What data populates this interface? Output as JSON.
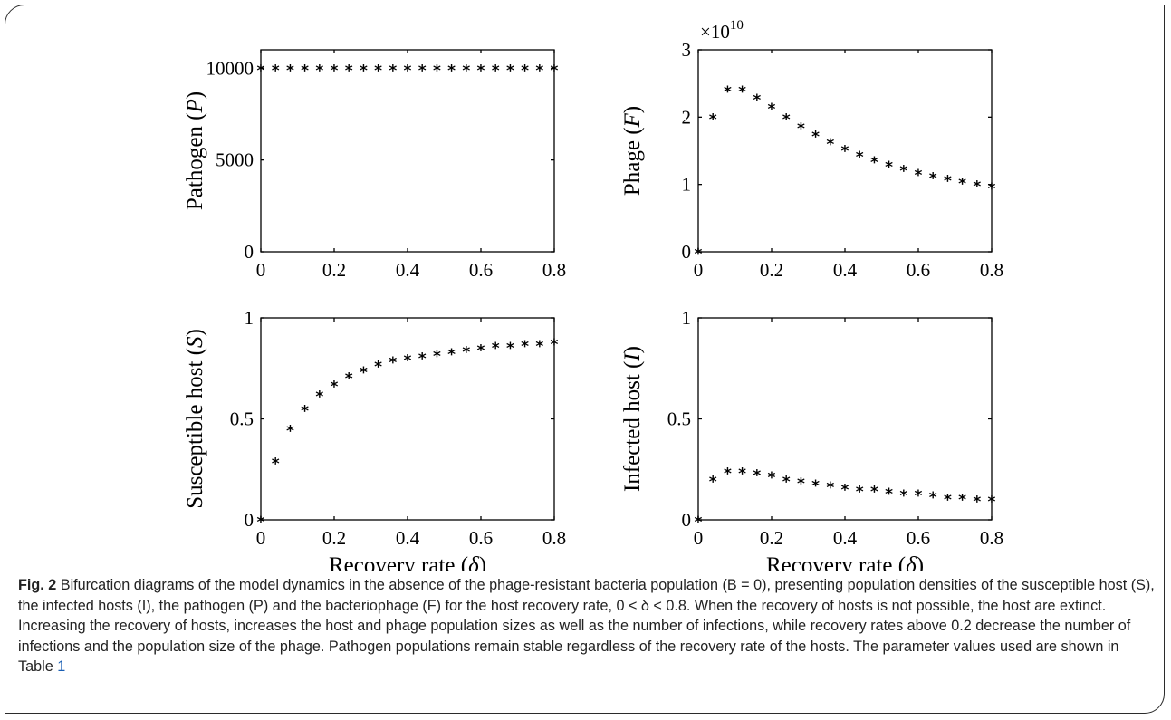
{
  "chart_data": [
    {
      "type": "scatter",
      "id": "pathogen",
      "ylabel": "Pathogen (P)",
      "xlabel": "",
      "xlim": [
        0,
        0.8
      ],
      "ylim": [
        0,
        11000
      ],
      "xticks": [
        0,
        0.2,
        0.4,
        0.6,
        0.8
      ],
      "xtick_labels": [
        "0",
        "0.2",
        "0.4",
        "0.6",
        "0.8"
      ],
      "yticks": [
        0,
        5000,
        10000
      ],
      "ytick_labels": [
        "0",
        "5000",
        "10000"
      ],
      "x": [
        0,
        0.04,
        0.08,
        0.12,
        0.16,
        0.2,
        0.24,
        0.28,
        0.32,
        0.36,
        0.4,
        0.44,
        0.48,
        0.52,
        0.56,
        0.6,
        0.64,
        0.68,
        0.72,
        0.76,
        0.8
      ],
      "y": [
        10000,
        10000,
        10000,
        10000,
        10000,
        10000,
        10000,
        10000,
        10000,
        10000,
        10000,
        10000,
        10000,
        10000,
        10000,
        10000,
        10000,
        10000,
        10000,
        10000,
        10000
      ]
    },
    {
      "type": "scatter",
      "id": "phage",
      "ylabel": "Phage (F)",
      "xlabel": "",
      "exponent": "10",
      "xlim": [
        0,
        0.8
      ],
      "ylim": [
        0,
        3
      ],
      "xticks": [
        0,
        0.2,
        0.4,
        0.6,
        0.8
      ],
      "xtick_labels": [
        "0",
        "0.2",
        "0.4",
        "0.6",
        "0.8"
      ],
      "yticks": [
        0,
        1,
        2,
        3
      ],
      "ytick_labels": [
        "0",
        "1",
        "2",
        "3"
      ],
      "x": [
        0,
        0.04,
        0.08,
        0.12,
        0.16,
        0.2,
        0.24,
        0.28,
        0.32,
        0.36,
        0.4,
        0.44,
        0.48,
        0.52,
        0.56,
        0.6,
        0.64,
        0.68,
        0.72,
        0.76,
        0.8
      ],
      "y": [
        0,
        2.0,
        2.41,
        2.41,
        2.29,
        2.15,
        2.0,
        1.86,
        1.74,
        1.63,
        1.53,
        1.44,
        1.36,
        1.29,
        1.23,
        1.17,
        1.12,
        1.08,
        1.04,
        1.0,
        0.97
      ]
    },
    {
      "type": "scatter",
      "id": "susceptible",
      "ylabel": "Susceptible host (S)",
      "xlabel": "Recovery rate (δ)",
      "xlim": [
        0,
        0.8
      ],
      "ylim": [
        0,
        1
      ],
      "xticks": [
        0,
        0.2,
        0.4,
        0.6,
        0.8
      ],
      "xtick_labels": [
        "0",
        "0.2",
        "0.4",
        "0.6",
        "0.8"
      ],
      "yticks": [
        0,
        0.5,
        1
      ],
      "ytick_labels": [
        "0",
        "0.5",
        "1"
      ],
      "x": [
        0,
        0.04,
        0.08,
        0.12,
        0.16,
        0.2,
        0.24,
        0.28,
        0.32,
        0.36,
        0.4,
        0.44,
        0.48,
        0.52,
        0.56,
        0.6,
        0.64,
        0.68,
        0.72,
        0.76,
        0.8
      ],
      "y": [
        0,
        0.29,
        0.45,
        0.55,
        0.62,
        0.67,
        0.71,
        0.74,
        0.77,
        0.79,
        0.8,
        0.81,
        0.82,
        0.83,
        0.84,
        0.85,
        0.86,
        0.86,
        0.87,
        0.87,
        0.88
      ]
    },
    {
      "type": "scatter",
      "id": "infected",
      "ylabel": "Infected host (I)",
      "xlabel": "Recovery rate (δ)",
      "xlim": [
        0,
        0.8
      ],
      "ylim": [
        0,
        1
      ],
      "xticks": [
        0,
        0.2,
        0.4,
        0.6,
        0.8
      ],
      "xtick_labels": [
        "0",
        "0.2",
        "0.4",
        "0.6",
        "0.8"
      ],
      "yticks": [
        0,
        0.5,
        1
      ],
      "ytick_labels": [
        "0",
        "0.5",
        "1"
      ],
      "x": [
        0,
        0.04,
        0.08,
        0.12,
        0.16,
        0.2,
        0.24,
        0.28,
        0.32,
        0.36,
        0.4,
        0.44,
        0.48,
        0.52,
        0.56,
        0.6,
        0.64,
        0.68,
        0.72,
        0.76,
        0.8
      ],
      "y": [
        0,
        0.2,
        0.24,
        0.24,
        0.23,
        0.22,
        0.2,
        0.19,
        0.18,
        0.17,
        0.16,
        0.15,
        0.15,
        0.14,
        0.13,
        0.13,
        0.12,
        0.11,
        0.11,
        0.1,
        0.1
      ]
    }
  ],
  "marker_glyph": "*",
  "caption": {
    "label": "Fig. 2",
    "text": "Bifurcation diagrams of the model dynamics in the absence of the phage-resistant bacteria population (B = 0), presenting population densities of the susceptible host (S), the infected hosts (I), the pathogen (P) and the bacteriophage (F) for the host recovery rate, 0 < δ < 0.8. When the recovery of hosts is not possible, the host are extinct. Increasing the recovery of hosts, increases the host and phage population sizes as well as the number of infections, while recovery rates above 0.2 decrease the number of infections and the population size of the phage. Pathogen populations remain stable regardless of the recovery rate of the hosts. The parameter values used are shown in Table",
    "table_ref": "1"
  }
}
